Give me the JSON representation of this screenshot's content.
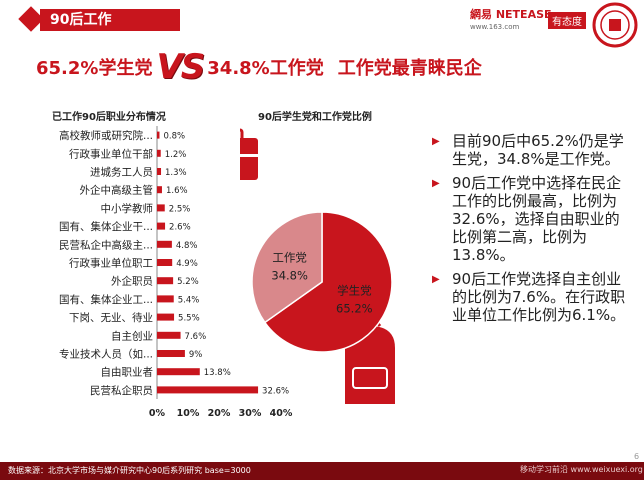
{
  "header": {
    "section_title": "90后工作",
    "logo_text": "網易 NETEASE",
    "logo_url": "www.163.com",
    "badge_text": "有态度"
  },
  "headline": {
    "left": "65.2%学生党",
    "vs": "VS",
    "right": "34.8%工作党",
    "tail": "工作党最青睐民企"
  },
  "colors": {
    "accent": "#c8151d",
    "accent_light": "#d9888b",
    "footer": "#7a0a0f"
  },
  "icons": [
    "briefcase-icon",
    "backpack-icon",
    "university-seal-icon"
  ],
  "chart_data": [
    {
      "type": "bar",
      "orientation": "horizontal",
      "title": "已工作90后职业分布情况",
      "categories": [
        "高校教师或研究院...",
        "行政事业单位干部",
        "进城务工人员",
        "外企中高级主管",
        "中小学教师",
        "国有、集体企业干...",
        "民营私企中高级主...",
        "行政事业单位职工",
        "外企职员",
        "国有、集体企业工...",
        "下岗、无业、待业",
        "自主创业",
        "专业技术人员（如...",
        "自由职业者",
        "民营私企职员"
      ],
      "values": [
        0.8,
        1.2,
        1.3,
        1.6,
        2.5,
        2.6,
        4.8,
        4.9,
        5.2,
        5.4,
        5.5,
        7.6,
        9,
        13.8,
        32.6
      ],
      "value_labels": [
        "0.8%",
        "1.2%",
        "1.3%",
        "1.6%",
        "2.5%",
        "2.6%",
        "4.8%",
        "4.9%",
        "5.2%",
        "5.4%",
        "5.5%",
        "7.6%",
        "9%",
        "13.8%",
        "32.6%"
      ],
      "xticks": [
        "0%",
        "10%",
        "20%",
        "30%",
        "40%"
      ],
      "xlim": [
        0,
        40
      ],
      "grid": false
    },
    {
      "type": "pie",
      "title": "90后学生党和工作党比例",
      "slices": [
        {
          "label": "学生党",
          "value": 65.2,
          "value_label": "65.2%",
          "color": "#c8151d"
        },
        {
          "label": "工作党",
          "value": 34.8,
          "value_label": "34.8%",
          "color": "#d9888b"
        }
      ]
    }
  ],
  "bullets": [
    "目前90后中65.2%仍是学生党，34.8%是工作党。",
    "90后工作党中选择在民企工作的比例最高，比例为32.6%，选择自由职业的比例第二高，比例为13.8%。",
    "90后工作党选择自主创业的比例为7.6%。在行政职业单位工作比例为6.1%。"
  ],
  "footer": {
    "source": "数据来源：北京大学市场与媒介研究中心90后系列研究 base=3000",
    "watermark": "移动学习前沿 www.weixuexi.org",
    "page_number": "6"
  }
}
